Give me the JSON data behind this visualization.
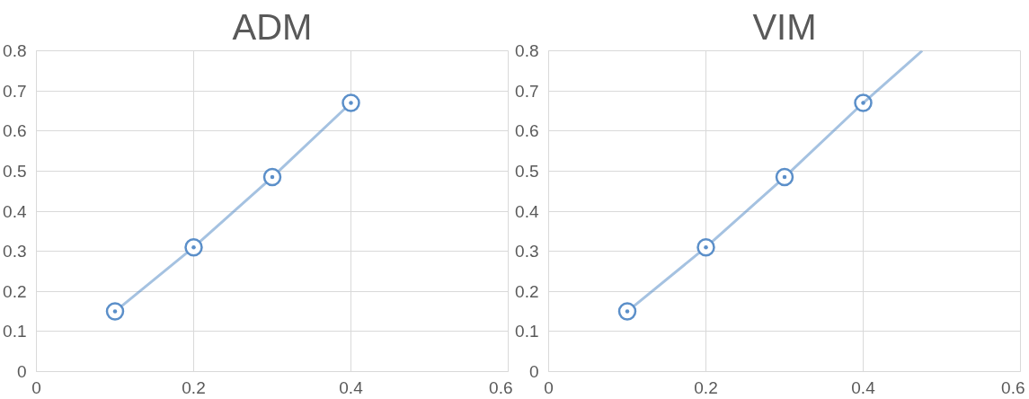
{
  "chart_data": [
    {
      "type": "line",
      "title": "ADM",
      "x": [
        0.1,
        0.2,
        0.3,
        0.4
      ],
      "series": [
        {
          "color": "#5b8fc9",
          "values": [
            0.15,
            0.31,
            0.485,
            0.67
          ]
        }
      ],
      "xlim": [
        0,
        0.6
      ],
      "xticks": [
        0,
        0.2,
        0.4,
        0.6
      ],
      "ylim": [
        0,
        0.8
      ],
      "yticks": [
        0,
        0.1,
        0.2,
        0.3,
        0.4,
        0.5,
        0.6,
        0.7,
        0.8
      ],
      "grid": true,
      "marker": "circle",
      "line_style": "solid"
    },
    {
      "type": "line",
      "title": "VIM",
      "x": [
        0.1,
        0.2,
        0.3,
        0.4
      ],
      "series": [
        {
          "color": "#5b8fc9",
          "values": [
            0.15,
            0.31,
            0.485,
            0.67
          ]
        },
        {
          "type": "line",
          "color": "#5b8fc9",
          "marker": "none",
          "x": [
            0.4,
            0.475
          ],
          "values": [
            0.67,
            0.8
          ]
        }
      ],
      "xlim": [
        0,
        0.6
      ],
      "xticks": [
        0,
        0.2,
        0.4,
        0.6
      ],
      "ylim": [
        0,
        0.8
      ],
      "yticks": [
        0,
        0.1,
        0.2,
        0.3,
        0.4,
        0.5,
        0.6,
        0.7,
        0.8
      ],
      "grid": true,
      "marker": "circle",
      "line_style": "solid"
    }
  ]
}
